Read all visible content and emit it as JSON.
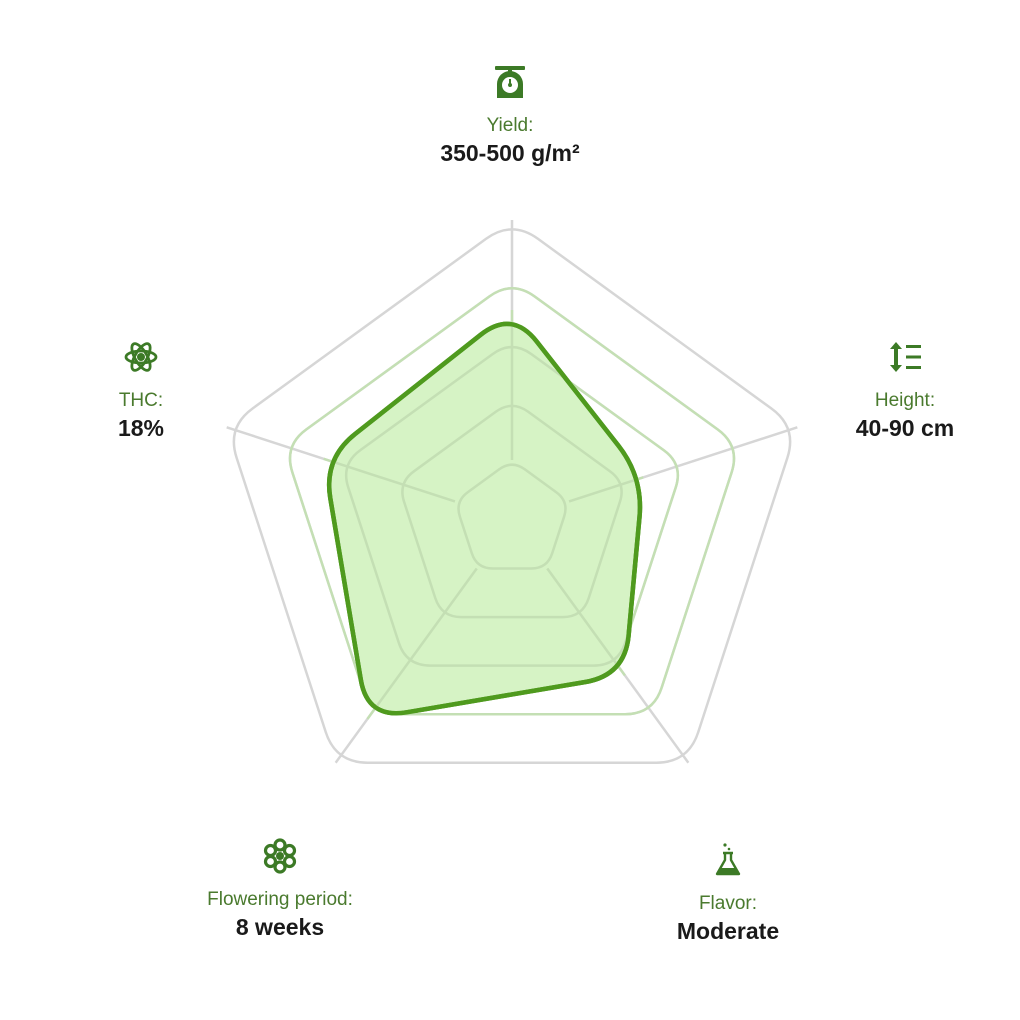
{
  "colors": {
    "grid": "#d6d6d6",
    "grid_inner": "#c4dfb4",
    "fill": "#d2f2bf",
    "stroke": "#4f9a1e",
    "icon": "#3c7a26"
  },
  "chart_data": {
    "type": "radar",
    "scale_max": 5,
    "rings": 5,
    "axes": [
      {
        "key": "yield",
        "label": "Yield:",
        "value_text": "350-500 g/m²",
        "value": 3.5,
        "icon": "scale-icon"
      },
      {
        "key": "height",
        "label": "Height:",
        "value_text": "40-90 cm",
        "value": 2.3,
        "icon": "height-icon"
      },
      {
        "key": "flavor",
        "label": "Flavor:",
        "value_text": "Moderate",
        "value": 3.2,
        "icon": "flask-icon"
      },
      {
        "key": "flowering",
        "label": "Flowering period:",
        "value_text": "8 weeks",
        "value": 4.1,
        "icon": "flower-icon"
      },
      {
        "key": "thc",
        "label": "THC:",
        "value_text": "18%",
        "value": 3.3,
        "icon": "atom-icon"
      }
    ]
  }
}
